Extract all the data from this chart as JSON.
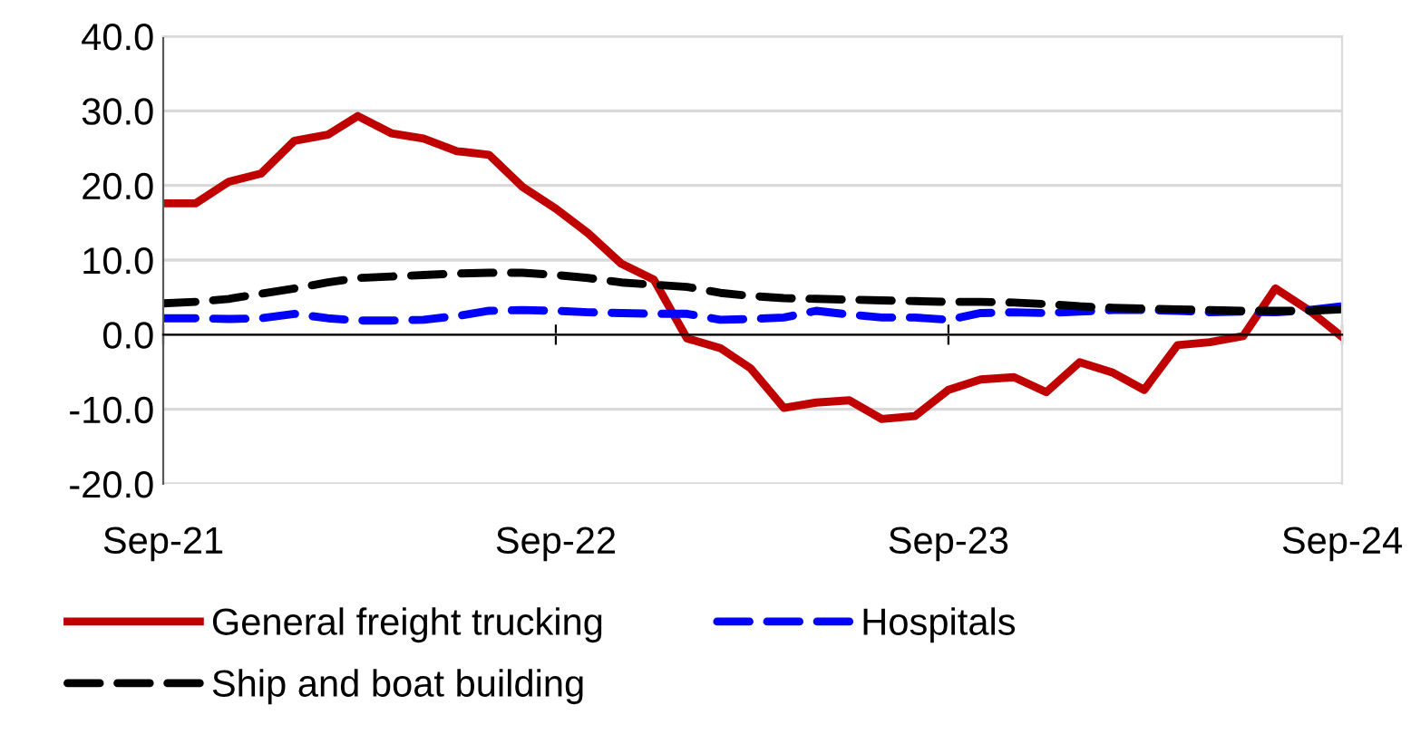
{
  "chart_data": {
    "type": "line",
    "x": [
      "2021-09",
      "2021-10",
      "2021-11",
      "2021-12",
      "2022-01",
      "2022-02",
      "2022-03",
      "2022-04",
      "2022-05",
      "2022-06",
      "2022-07",
      "2022-08",
      "2022-09",
      "2022-10",
      "2022-11",
      "2022-12",
      "2023-01",
      "2023-02",
      "2023-03",
      "2023-04",
      "2023-05",
      "2023-06",
      "2023-07",
      "2023-08",
      "2023-09",
      "2023-10",
      "2023-11",
      "2023-12",
      "2024-01",
      "2024-02",
      "2024-03",
      "2024-04",
      "2024-05",
      "2024-06",
      "2024-07",
      "2024-08",
      "2024-09"
    ],
    "series": [
      {
        "name": "General freight trucking",
        "color": "#c00000",
        "line_style": "solid",
        "values": [
          17.6,
          17.6,
          20.5,
          21.6,
          26.0,
          26.8,
          29.3,
          27.0,
          26.3,
          24.6,
          24.1,
          19.8,
          16.9,
          13.6,
          9.5,
          7.4,
          -0.5,
          -1.8,
          -4.5,
          -9.8,
          -9.1,
          -8.8,
          -11.3,
          -10.9,
          -7.4,
          -6.0,
          -5.7,
          -7.7,
          -3.7,
          -5.1,
          -7.4,
          -1.4,
          -1.0,
          -0.2,
          6.2,
          3.3,
          -0.3
        ]
      },
      {
        "name": "Hospitals",
        "color": "#0000ff",
        "line_style": "dashed",
        "values": [
          2.2,
          2.2,
          2.1,
          2.2,
          2.8,
          2.2,
          1.9,
          1.9,
          2.0,
          2.5,
          3.2,
          3.3,
          3.2,
          3.0,
          2.9,
          2.8,
          2.8,
          2.0,
          2.1,
          2.3,
          3.2,
          2.7,
          2.3,
          2.3,
          2.0,
          2.9,
          3.0,
          2.9,
          3.1,
          3.3,
          3.3,
          3.2,
          3.0,
          3.1,
          3.0,
          3.3,
          3.8
        ]
      },
      {
        "name": "Ship and boat building",
        "color": "#000000",
        "line_style": "dashed",
        "values": [
          4.2,
          4.4,
          4.8,
          5.5,
          6.2,
          7.0,
          7.6,
          7.8,
          8.0,
          8.2,
          8.3,
          8.3,
          8.0,
          7.6,
          7.0,
          6.7,
          6.4,
          5.6,
          5.2,
          4.9,
          4.8,
          4.7,
          4.6,
          4.5,
          4.4,
          4.4,
          4.3,
          4.1,
          3.8,
          3.6,
          3.5,
          3.4,
          3.3,
          3.2,
          3.2,
          3.2,
          3.4
        ]
      }
    ],
    "xlim": [
      "2021-09",
      "2024-09"
    ],
    "xticks": [
      {
        "value": "2021-09",
        "label": "Sep-21"
      },
      {
        "value": "2022-09",
        "label": "Sep-22"
      },
      {
        "value": "2023-09",
        "label": "Sep-23"
      },
      {
        "value": "2024-09",
        "label": "Sep-24"
      }
    ],
    "ylim": [
      -20,
      40
    ],
    "yticks": [
      {
        "value": -20,
        "label": "-20.0"
      },
      {
        "value": -10,
        "label": "-10.0"
      },
      {
        "value": 0,
        "label": "0.0"
      },
      {
        "value": 10,
        "label": "10.0"
      },
      {
        "value": 20,
        "label": "20.0"
      },
      {
        "value": 30,
        "label": "30.0"
      },
      {
        "value": 40,
        "label": "40.0"
      }
    ],
    "grid": "y",
    "legend": "bottom",
    "marker": "none"
  }
}
